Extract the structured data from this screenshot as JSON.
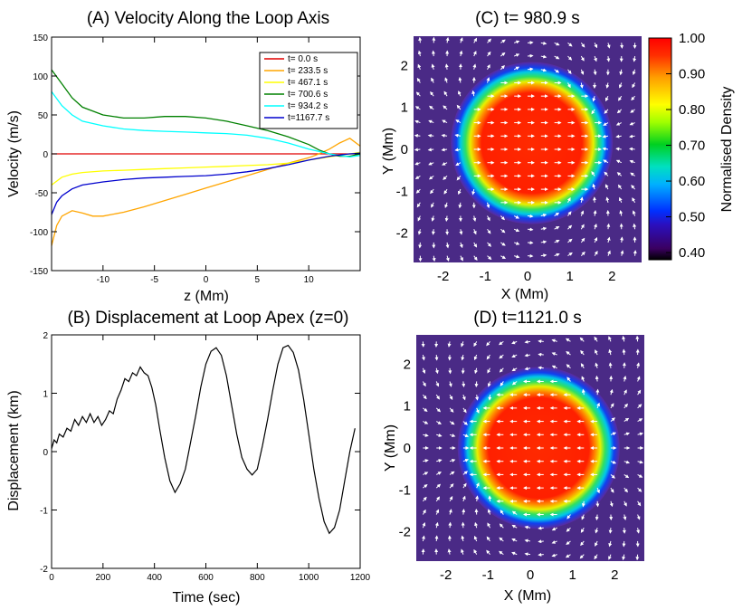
{
  "chart_data": [
    {
      "id": "A",
      "type": "line",
      "title": "(A) Velocity Along the Loop Axis",
      "xlabel": "z (Mm)",
      "ylabel": "Velocity (m/s)",
      "xlim": [
        -15,
        15
      ],
      "ylim": [
        -150,
        150
      ],
      "xticks": [
        -10,
        -5,
        0,
        5,
        10
      ],
      "yticks": [
        -150,
        -100,
        -50,
        0,
        50,
        100,
        150
      ],
      "legend": "top-right",
      "series": [
        {
          "name": "t=    0.0 s",
          "color": "#e00000",
          "x": [
            -15,
            -10,
            -5,
            0,
            5,
            10,
            12,
            14,
            15
          ],
          "y": [
            0,
            0,
            0,
            0,
            0,
            0,
            0,
            0,
            0
          ]
        },
        {
          "name": "t= 233.5 s",
          "color": "#ffa500",
          "x": [
            -15,
            -14.5,
            -14,
            -13,
            -12,
            -11,
            -10,
            -8,
            -6,
            -4,
            -2,
            0,
            2,
            4,
            6,
            8,
            10,
            11,
            12,
            13,
            14,
            15
          ],
          "y": [
            -118,
            -92,
            -80,
            -73,
            -76,
            -80,
            -80,
            -75,
            -68,
            -60,
            -52,
            -44,
            -36,
            -28,
            -20,
            -12,
            -5,
            0,
            6,
            14,
            20,
            10
          ]
        },
        {
          "name": "t= 467.1 s",
          "color": "#ffff00",
          "x": [
            -15,
            -14,
            -13,
            -12,
            -10,
            -8,
            -6,
            -4,
            -2,
            0,
            2,
            4,
            6,
            8,
            10,
            12,
            14,
            15
          ],
          "y": [
            -40,
            -30,
            -26,
            -24,
            -22,
            -21,
            -20,
            -19,
            -18,
            -17,
            -16,
            -15,
            -14,
            -12,
            -8,
            -4,
            0,
            2
          ]
        },
        {
          "name": "t= 700.6 s",
          "color": "#008000",
          "x": [
            -15,
            -14,
            -13,
            -12,
            -10,
            -8,
            -6,
            -4,
            -2,
            0,
            2,
            4,
            6,
            8,
            10,
            11,
            12,
            13,
            14,
            15
          ],
          "y": [
            108,
            90,
            72,
            60,
            50,
            46,
            46,
            48,
            48,
            46,
            42,
            36,
            30,
            22,
            12,
            5,
            0,
            -3,
            -3,
            0
          ]
        },
        {
          "name": "t= 934.2 s",
          "color": "#00ffff",
          "x": [
            -15,
            -14,
            -13,
            -12,
            -10,
            -8,
            -6,
            -4,
            -2,
            0,
            2,
            4,
            6,
            8,
            10,
            12,
            14,
            15
          ],
          "y": [
            80,
            62,
            50,
            42,
            36,
            32,
            30,
            29,
            28,
            27,
            26,
            24,
            20,
            14,
            6,
            0,
            -4,
            -2
          ]
        },
        {
          "name": "t=1167.7 s",
          "color": "#0000cd",
          "x": [
            -15,
            -14.5,
            -14,
            -13,
            -12,
            -10,
            -8,
            -6,
            -4,
            -2,
            0,
            2,
            4,
            6,
            8,
            10,
            12,
            14,
            15
          ],
          "y": [
            -78,
            -62,
            -54,
            -45,
            -40,
            -36,
            -33,
            -31,
            -30,
            -29,
            -28,
            -26,
            -23,
            -19,
            -14,
            -8,
            -3,
            0,
            1
          ]
        }
      ]
    },
    {
      "id": "B",
      "type": "line",
      "title": "(B) Displacement at Loop Apex (z=0)",
      "xlabel": "Time (sec)",
      "ylabel": "Displacement (km)",
      "xlim": [
        0,
        1200
      ],
      "ylim": [
        -2,
        2
      ],
      "xticks": [
        0,
        200,
        400,
        600,
        800,
        1000,
        1200
      ],
      "yticks": [
        -2,
        -1,
        0,
        1,
        2
      ],
      "series": [
        {
          "name": "",
          "color": "#000000",
          "x": [
            0,
            10,
            20,
            30,
            45,
            60,
            75,
            90,
            105,
            120,
            135,
            150,
            165,
            180,
            195,
            210,
            225,
            240,
            255,
            270,
            285,
            300,
            315,
            330,
            345,
            360,
            375,
            390,
            405,
            420,
            440,
            460,
            480,
            500,
            520,
            540,
            560,
            580,
            600,
            620,
            640,
            660,
            680,
            700,
            720,
            740,
            760,
            780,
            800,
            820,
            840,
            860,
            880,
            900,
            920,
            940,
            960,
            980,
            1000,
            1020,
            1040,
            1060,
            1080,
            1100,
            1120,
            1140,
            1160,
            1180
          ],
          "y": [
            0.05,
            0.2,
            0.15,
            0.3,
            0.25,
            0.4,
            0.35,
            0.55,
            0.45,
            0.6,
            0.5,
            0.65,
            0.5,
            0.6,
            0.45,
            0.55,
            0.7,
            0.65,
            0.9,
            1.05,
            1.25,
            1.2,
            1.35,
            1.3,
            1.45,
            1.35,
            1.3,
            1.1,
            0.8,
            0.4,
            -0.1,
            -0.5,
            -0.7,
            -0.55,
            -0.3,
            0.15,
            0.6,
            1.1,
            1.5,
            1.72,
            1.78,
            1.65,
            1.3,
            0.8,
            0.3,
            -0.1,
            -0.3,
            -0.4,
            -0.3,
            0.1,
            0.55,
            1.05,
            1.5,
            1.78,
            1.82,
            1.7,
            1.4,
            0.9,
            0.3,
            -0.3,
            -0.8,
            -1.2,
            -1.4,
            -1.3,
            -1.0,
            -0.5,
            0.0,
            0.4
          ]
        }
      ]
    },
    {
      "id": "C",
      "type": "heatmap",
      "title": "(C) t= 980.9 s",
      "xlabel": "X (Mm)",
      "ylabel": "Y (Mm)",
      "xlim": [
        -2.7,
        2.7
      ],
      "ylim": [
        -2.7,
        2.7
      ],
      "xticks": [
        -2,
        -1,
        0,
        1,
        2
      ],
      "yticks": [
        -2,
        -1,
        0,
        1,
        2
      ],
      "center": [
        0.1,
        0.15
      ],
      "radius": 1.65
    },
    {
      "id": "D",
      "type": "heatmap",
      "title": "(D) t=1121.0 s",
      "xlabel": "X (Mm)",
      "ylabel": "Y (Mm)",
      "xlim": [
        -2.7,
        2.7
      ],
      "ylim": [
        -2.7,
        2.7
      ],
      "xticks": [
        -2,
        -1,
        0,
        1,
        2
      ],
      "yticks": [
        -2,
        -1,
        0,
        1,
        2
      ],
      "center": [
        0.2,
        0.0
      ],
      "radius": 1.65
    }
  ],
  "colorbar": {
    "label": "Normalised Density",
    "range": [
      0.38,
      1.0
    ],
    "ticks": [
      {
        "v": 1.0,
        "label": "1.00"
      },
      {
        "v": 0.9,
        "label": "0.90"
      },
      {
        "v": 0.8,
        "label": "0.80"
      },
      {
        "v": 0.7,
        "label": "0.70"
      },
      {
        "v": 0.6,
        "label": "0.60"
      },
      {
        "v": 0.5,
        "label": "0.50"
      },
      {
        "v": 0.4,
        "label": "0.40"
      }
    ]
  }
}
